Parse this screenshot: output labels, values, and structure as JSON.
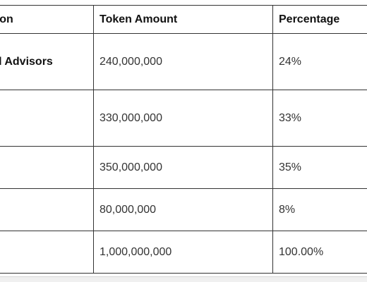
{
  "table": {
    "headers": [
      "Distribution",
      "Token Amount",
      "Percentage"
    ],
    "rows": [
      {
        "category": "Team and Advisors",
        "amount": "240,000,000",
        "percentage": "24%"
      },
      {
        "category": "",
        "amount": "330,000,000",
        "percentage": "33%"
      },
      {
        "category": "",
        "amount": "350,000,000",
        "percentage": "35%"
      },
      {
        "category": "",
        "amount": "80,000,000",
        "percentage": "8%"
      },
      {
        "category": "",
        "amount": "1,000,000,000",
        "percentage": "100.00%"
      }
    ]
  }
}
